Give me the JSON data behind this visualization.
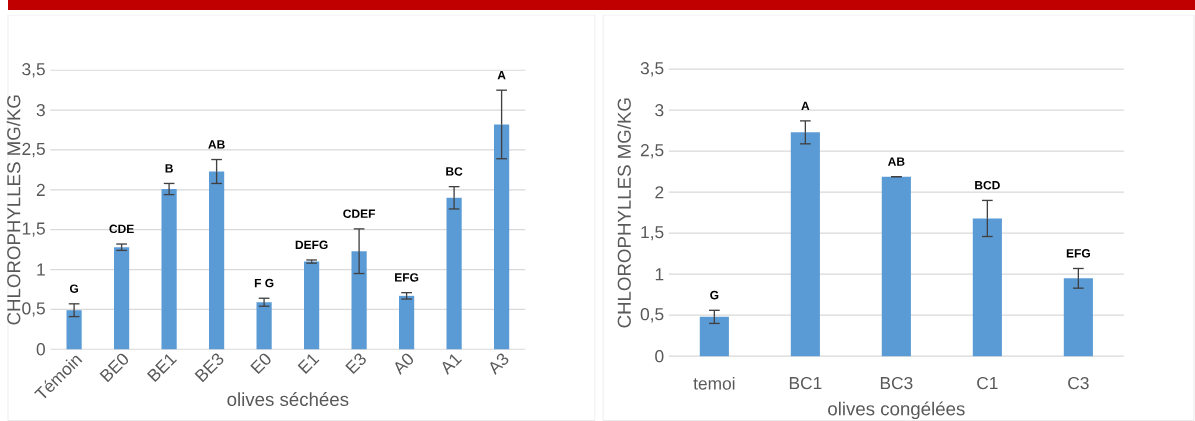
{
  "chart_data": [
    {
      "type": "bar",
      "xlabel": "olives séchées",
      "ylabel": "CHLOROPHYLLES MG/KG",
      "color": "#5b9bd5",
      "categories": [
        "Témoin",
        "BE0",
        "BE1",
        "BE3",
        "E0",
        "E1",
        "E3",
        "A0",
        "A1",
        "A3"
      ],
      "values": [
        0.49,
        1.28,
        2.01,
        2.23,
        0.59,
        1.1,
        1.23,
        0.67,
        1.9,
        2.82
      ],
      "errors": [
        0.08,
        0.04,
        0.07,
        0.15,
        0.05,
        0.02,
        0.28,
        0.04,
        0.14,
        0.43
      ],
      "ylim": [
        0,
        3.5
      ],
      "yticks": [
        0,
        {
          "value": 0.5,
          "label": "0,5"
        },
        1,
        {
          "value": 1.5,
          "label": "1,5"
        },
        2,
        {
          "value": 2.5,
          "label": "2,5"
        },
        3,
        {
          "value": 3.5,
          "label": "3,5"
        }
      ],
      "grid": "y",
      "annotations": [
        {
          "text": "G",
          "x": "Témoin",
          "y": 0.57
        },
        {
          "text": "CDE",
          "x": "BE0",
          "y": 1.32
        },
        {
          "text": "B",
          "x": "BE1",
          "y": 2.08
        },
        {
          "text": "AB",
          "x": "BE3",
          "y": 2.38
        },
        {
          "text": "F G",
          "x": "E0",
          "y": 0.64
        },
        {
          "text": "DEFG",
          "x": "E1",
          "y": 1.12
        },
        {
          "text": "CDEF",
          "x": "E3",
          "y": 1.51
        },
        {
          "text": "EFG",
          "x": "A0",
          "y": 0.71
        },
        {
          "text": "BC",
          "x": "A1",
          "y": 2.04
        },
        {
          "text": "A",
          "x": "A3",
          "y": 3.25
        }
      ]
    },
    {
      "type": "bar",
      "xlabel": "olives congélées",
      "ylabel": "CHLOROPHYLLES MG/KG",
      "color": "#5b9bd5",
      "categories": [
        "temoi",
        "BC1",
        "BC3",
        "C1",
        "C3"
      ],
      "values": [
        0.48,
        2.73,
        2.19,
        1.68,
        0.95
      ],
      "errors": [
        0.08,
        0.14,
        0,
        0.22,
        0.12
      ],
      "ylim": [
        0,
        3.5
      ],
      "yticks": [
        0,
        {
          "value": 0.5,
          "label": "0,5"
        },
        1,
        {
          "value": 1.5,
          "label": "1,5"
        },
        2,
        {
          "value": 2.5,
          "label": "2,5"
        },
        3,
        {
          "value": 3.5,
          "label": "3,5"
        }
      ],
      "grid": "y",
      "annotations": [
        {
          "text": "G",
          "x": "temoi",
          "y": 0.56
        },
        {
          "text": "A",
          "x": "BC1",
          "y": 2.87
        },
        {
          "text": "AB",
          "x": "BC3",
          "y": 2.19
        },
        {
          "text": "BCD",
          "x": "C1",
          "y": 1.9
        },
        {
          "text": "EFG",
          "x": "C3",
          "y": 1.07
        }
      ]
    }
  ]
}
